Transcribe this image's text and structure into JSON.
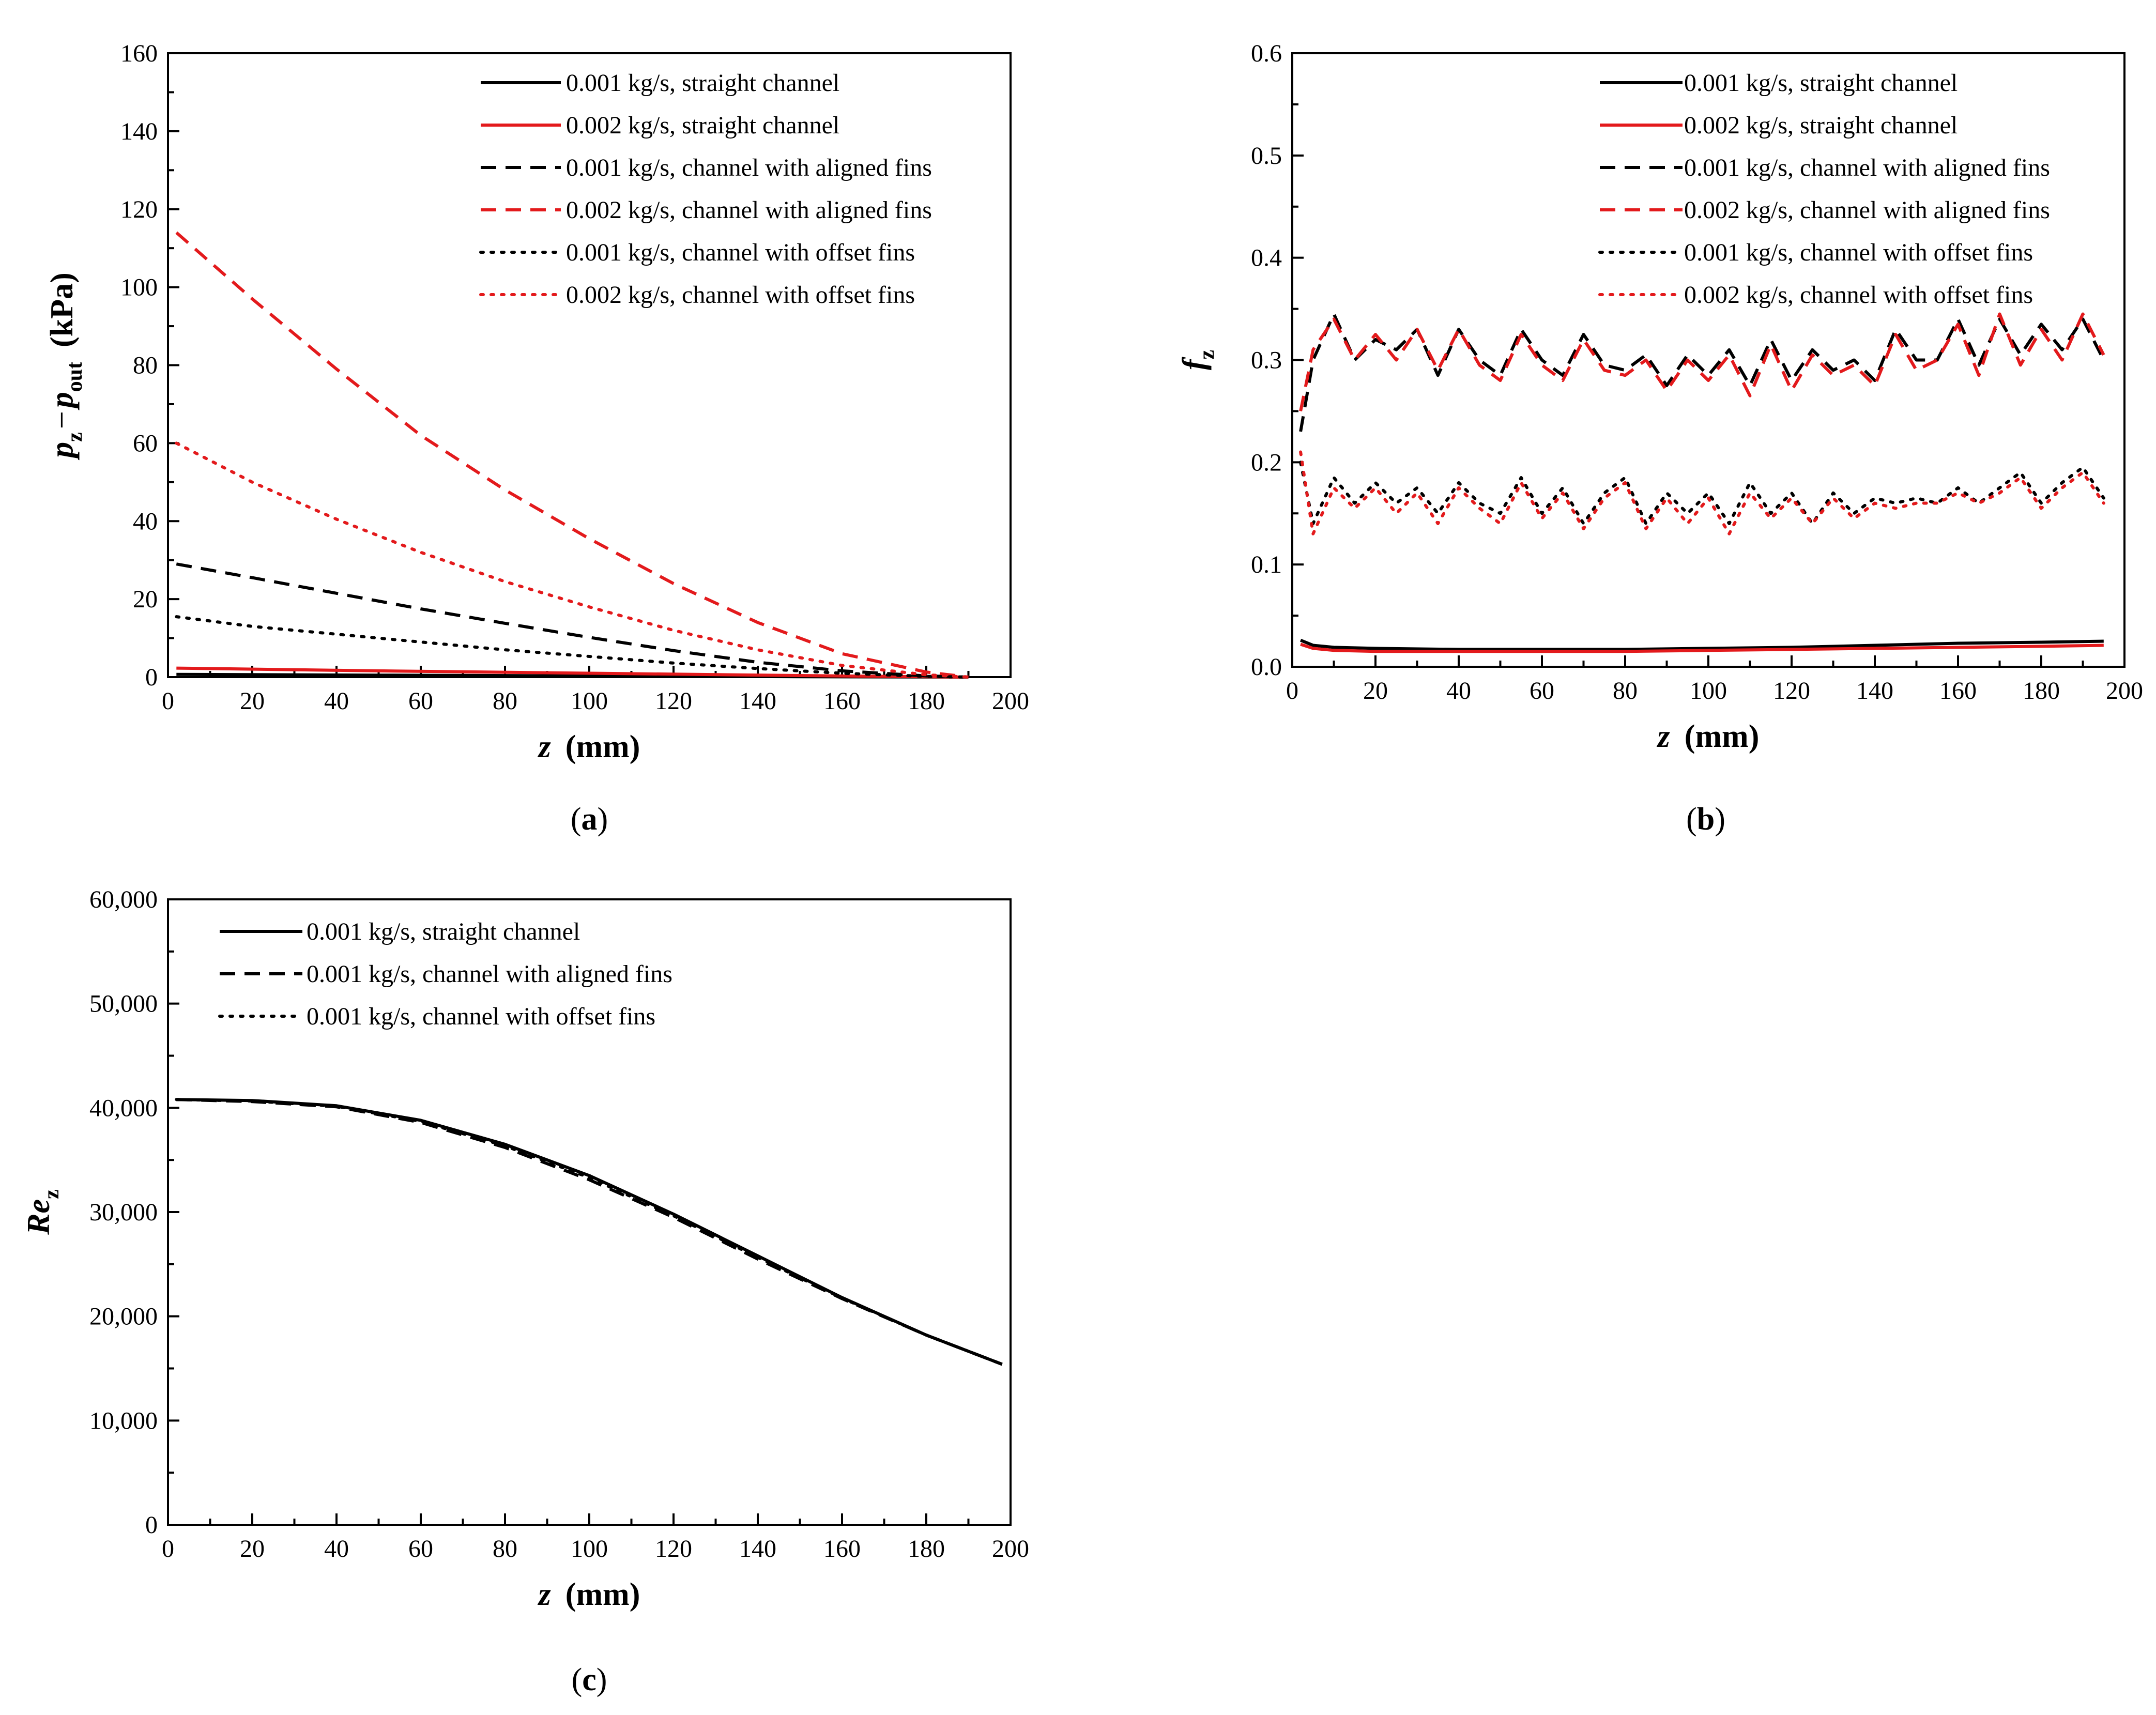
{
  "colors": {
    "black": "#000000",
    "red": "#e31a1c"
  },
  "chart_data": [
    {
      "panel": "a",
      "panel_label": {
        "open": "(",
        "letter": "a",
        "close": ")"
      },
      "type": "line",
      "xlabel": {
        "var": "z",
        "unit": "(mm)"
      },
      "ylabel": {
        "p1": "p",
        "s1": "z",
        "minus": "−",
        "p2": "p",
        "s2": "out",
        "unit": "(kPa)"
      },
      "xlim": [
        0,
        200
      ],
      "ylim": [
        0,
        160
      ],
      "xticks": [
        0,
        20,
        40,
        60,
        80,
        100,
        120,
        140,
        160,
        180,
        200
      ],
      "yticks": [
        0,
        20,
        40,
        60,
        80,
        100,
        120,
        140,
        160
      ],
      "xtick_labels": [
        "0",
        "20",
        "40",
        "60",
        "80",
        "100",
        "120",
        "140",
        "160",
        "180",
        "200"
      ],
      "ytick_labels": [
        "0",
        "20",
        "40",
        "60",
        "80",
        "100",
        "120",
        "140",
        "160"
      ],
      "legend_position": "top-right",
      "series": [
        {
          "name": "0.001 kg/s, straight channel",
          "color": "#000000",
          "style": "solid",
          "x": [
            2,
            50,
            100,
            150,
            190
          ],
          "y": [
            0.7,
            0.5,
            0.3,
            0.1,
            0
          ]
        },
        {
          "name": "0.002 kg/s, straight channel",
          "color": "#e31a1c",
          "style": "solid",
          "x": [
            2,
            50,
            100,
            150,
            190
          ],
          "y": [
            2.3,
            1.6,
            1.0,
            0.4,
            0
          ]
        },
        {
          "name": "0.001 kg/s, channel with aligned fins",
          "color": "#000000",
          "style": "dashed",
          "x": [
            2,
            20,
            40,
            60,
            80,
            100,
            120,
            140,
            160,
            180,
            190
          ],
          "y": [
            29,
            25.5,
            21.5,
            17.5,
            13.8,
            10.2,
            6.8,
            3.8,
            1.6,
            0.3,
            0
          ]
        },
        {
          "name": "0.002 kg/s, channel with aligned fins",
          "color": "#e31a1c",
          "style": "dashed",
          "x": [
            2,
            20,
            40,
            60,
            80,
            100,
            120,
            140,
            160,
            180,
            190
          ],
          "y": [
            114,
            97,
            79,
            62,
            48,
            35.5,
            24,
            14,
            6,
            1.3,
            0
          ]
        },
        {
          "name": "0.001 kg/s, channel with offset fins",
          "color": "#000000",
          "style": "dotted",
          "x": [
            2,
            20,
            40,
            60,
            80,
            100,
            120,
            140,
            160,
            180,
            190
          ],
          "y": [
            15.5,
            13,
            11,
            9,
            7,
            5.3,
            3.6,
            2.2,
            1.0,
            0.2,
            0
          ]
        },
        {
          "name": "0.002 kg/s, channel with offset fins",
          "color": "#e31a1c",
          "style": "dotted",
          "x": [
            2,
            20,
            40,
            60,
            80,
            100,
            120,
            140,
            160,
            180,
            190
          ],
          "y": [
            60,
            50,
            40.5,
            32,
            24.5,
            18,
            12,
            7,
            3,
            0.6,
            0
          ]
        }
      ]
    },
    {
      "panel": "b",
      "panel_label": {
        "open": "(",
        "letter": "b",
        "close": ")"
      },
      "type": "line",
      "xlabel": {
        "var": "z",
        "unit": "(mm)"
      },
      "ylabel": {
        "p1": "f",
        "s1": "z"
      },
      "xlim": [
        0,
        200
      ],
      "ylim": [
        0,
        0.6
      ],
      "xticks": [
        0,
        20,
        40,
        60,
        80,
        100,
        120,
        140,
        160,
        180,
        200
      ],
      "yticks": [
        0,
        0.1,
        0.2,
        0.3,
        0.4,
        0.5,
        0.6
      ],
      "xtick_labels": [
        "0",
        "20",
        "40",
        "60",
        "80",
        "100",
        "120",
        "140",
        "160",
        "180",
        "200"
      ],
      "ytick_labels": [
        "0.0",
        "0.1",
        "0.2",
        "0.3",
        "0.4",
        "0.5",
        "0.6"
      ],
      "legend_position": "top-right",
      "series": [
        {
          "name": "0.001 kg/s, straight channel",
          "color": "#000000",
          "style": "solid",
          "x": [
            2,
            5,
            10,
            20,
            40,
            60,
            80,
            100,
            120,
            140,
            160,
            180,
            195
          ],
          "y": [
            0.026,
            0.021,
            0.019,
            0.018,
            0.017,
            0.017,
            0.017,
            0.018,
            0.019,
            0.021,
            0.023,
            0.024,
            0.025
          ]
        },
        {
          "name": "0.002 kg/s, straight channel",
          "color": "#e31a1c",
          "style": "solid",
          "x": [
            2,
            5,
            10,
            20,
            40,
            60,
            80,
            100,
            120,
            140,
            160,
            180,
            195
          ],
          "y": [
            0.022,
            0.018,
            0.016,
            0.015,
            0.015,
            0.015,
            0.015,
            0.016,
            0.017,
            0.018,
            0.019,
            0.02,
            0.021
          ]
        },
        {
          "name": "0.001 kg/s, channel with aligned fins",
          "color": "#000000",
          "style": "dashed",
          "x": [
            2,
            5,
            10,
            15,
            20,
            25,
            30,
            35,
            40,
            45,
            50,
            55,
            60,
            65,
            70,
            75,
            80,
            85,
            90,
            95,
            100,
            105,
            110,
            115,
            120,
            125,
            130,
            135,
            140,
            145,
            150,
            155,
            160,
            165,
            170,
            175,
            180,
            185,
            190,
            195
          ],
          "y": [
            0.23,
            0.3,
            0.345,
            0.3,
            0.32,
            0.31,
            0.33,
            0.285,
            0.33,
            0.3,
            0.285,
            0.33,
            0.3,
            0.285,
            0.325,
            0.295,
            0.29,
            0.305,
            0.275,
            0.305,
            0.285,
            0.31,
            0.275,
            0.32,
            0.28,
            0.31,
            0.29,
            0.3,
            0.28,
            0.33,
            0.3,
            0.3,
            0.34,
            0.295,
            0.34,
            0.305,
            0.335,
            0.31,
            0.34,
            0.3
          ]
        },
        {
          "name": "0.002 kg/s, channel with aligned fins",
          "color": "#e31a1c",
          "style": "dashed",
          "x": [
            2,
            5,
            10,
            15,
            20,
            25,
            30,
            35,
            40,
            45,
            50,
            55,
            60,
            65,
            70,
            75,
            80,
            85,
            90,
            95,
            100,
            105,
            110,
            115,
            120,
            125,
            130,
            135,
            140,
            145,
            150,
            155,
            160,
            165,
            170,
            175,
            180,
            185,
            190,
            195
          ],
          "y": [
            0.25,
            0.31,
            0.34,
            0.3,
            0.325,
            0.3,
            0.33,
            0.29,
            0.33,
            0.295,
            0.28,
            0.325,
            0.295,
            0.28,
            0.32,
            0.29,
            0.285,
            0.3,
            0.27,
            0.3,
            0.28,
            0.305,
            0.265,
            0.315,
            0.27,
            0.305,
            0.285,
            0.295,
            0.275,
            0.325,
            0.29,
            0.3,
            0.335,
            0.285,
            0.345,
            0.295,
            0.33,
            0.3,
            0.345,
            0.305
          ]
        },
        {
          "name": "0.001 kg/s, channel with offset fins",
          "color": "#000000",
          "style": "dotted",
          "x": [
            2,
            5,
            10,
            15,
            20,
            25,
            30,
            35,
            40,
            45,
            50,
            55,
            60,
            65,
            70,
            75,
            80,
            85,
            90,
            95,
            100,
            105,
            110,
            115,
            120,
            125,
            130,
            135,
            140,
            145,
            150,
            155,
            160,
            165,
            170,
            175,
            180,
            185,
            190,
            195
          ],
          "y": [
            0.2,
            0.14,
            0.185,
            0.16,
            0.18,
            0.16,
            0.175,
            0.15,
            0.18,
            0.16,
            0.15,
            0.185,
            0.15,
            0.175,
            0.14,
            0.17,
            0.185,
            0.14,
            0.17,
            0.15,
            0.17,
            0.14,
            0.18,
            0.15,
            0.17,
            0.14,
            0.17,
            0.15,
            0.165,
            0.16,
            0.165,
            0.16,
            0.175,
            0.16,
            0.175,
            0.19,
            0.16,
            0.18,
            0.195,
            0.165
          ]
        },
        {
          "name": "0.002 kg/s, channel with offset fins",
          "color": "#e31a1c",
          "style": "dotted",
          "x": [
            2,
            5,
            10,
            15,
            20,
            25,
            30,
            35,
            40,
            45,
            50,
            55,
            60,
            65,
            70,
            75,
            80,
            85,
            90,
            95,
            100,
            105,
            110,
            115,
            120,
            125,
            130,
            135,
            140,
            145,
            150,
            155,
            160,
            165,
            170,
            175,
            180,
            185,
            190,
            195
          ],
          "y": [
            0.21,
            0.13,
            0.175,
            0.155,
            0.175,
            0.15,
            0.17,
            0.14,
            0.175,
            0.155,
            0.14,
            0.18,
            0.145,
            0.17,
            0.135,
            0.165,
            0.18,
            0.135,
            0.165,
            0.14,
            0.165,
            0.13,
            0.17,
            0.145,
            0.165,
            0.14,
            0.165,
            0.145,
            0.16,
            0.155,
            0.16,
            0.16,
            0.17,
            0.16,
            0.17,
            0.185,
            0.155,
            0.175,
            0.19,
            0.16
          ]
        }
      ]
    },
    {
      "panel": "c",
      "panel_label": {
        "open": "(",
        "letter": "c",
        "close": ")"
      },
      "type": "line",
      "xlabel": {
        "var": "z",
        "unit": "(mm)"
      },
      "ylabel": {
        "p1": "Re",
        "s1": "z"
      },
      "xlim": [
        0,
        200
      ],
      "ylim": [
        0,
        60000
      ],
      "xticks": [
        0,
        20,
        40,
        60,
        80,
        100,
        120,
        140,
        160,
        180,
        200
      ],
      "yticks": [
        0,
        10000,
        20000,
        30000,
        40000,
        50000,
        60000
      ],
      "xtick_labels": [
        "0",
        "20",
        "40",
        "60",
        "80",
        "100",
        "120",
        "140",
        "160",
        "180",
        "200"
      ],
      "ytick_labels": [
        "0",
        "10,000",
        "20,000",
        "30,000",
        "40,000",
        "50,000",
        "60,000"
      ],
      "legend_position": "top-left",
      "series": [
        {
          "name": "0.001 kg/s, straight channel",
          "color": "#000000",
          "style": "solid",
          "x": [
            2,
            20,
            40,
            60,
            80,
            100,
            120,
            140,
            160,
            180,
            198
          ],
          "y": [
            40800,
            40700,
            40200,
            38800,
            36500,
            33500,
            29800,
            25800,
            21800,
            18200,
            15400
          ]
        },
        {
          "name": "0.001 kg/s, channel with aligned fins",
          "color": "#000000",
          "style": "dashed",
          "x": [
            2,
            20,
            40,
            60,
            80,
            100,
            120,
            140,
            160,
            180,
            198
          ],
          "y": [
            40800,
            40600,
            40100,
            38600,
            36200,
            33100,
            29500,
            25500,
            21700,
            18200,
            15400
          ]
        },
        {
          "name": "0.001 kg/s, channel with offset fins",
          "color": "#000000",
          "style": "dotted",
          "x": [
            2,
            20,
            40,
            60,
            80,
            100,
            120,
            140,
            160,
            180,
            198
          ],
          "y": [
            40800,
            40650,
            40150,
            38700,
            36350,
            33300,
            29650,
            25650,
            21750,
            18200,
            15400
          ]
        }
      ]
    }
  ]
}
